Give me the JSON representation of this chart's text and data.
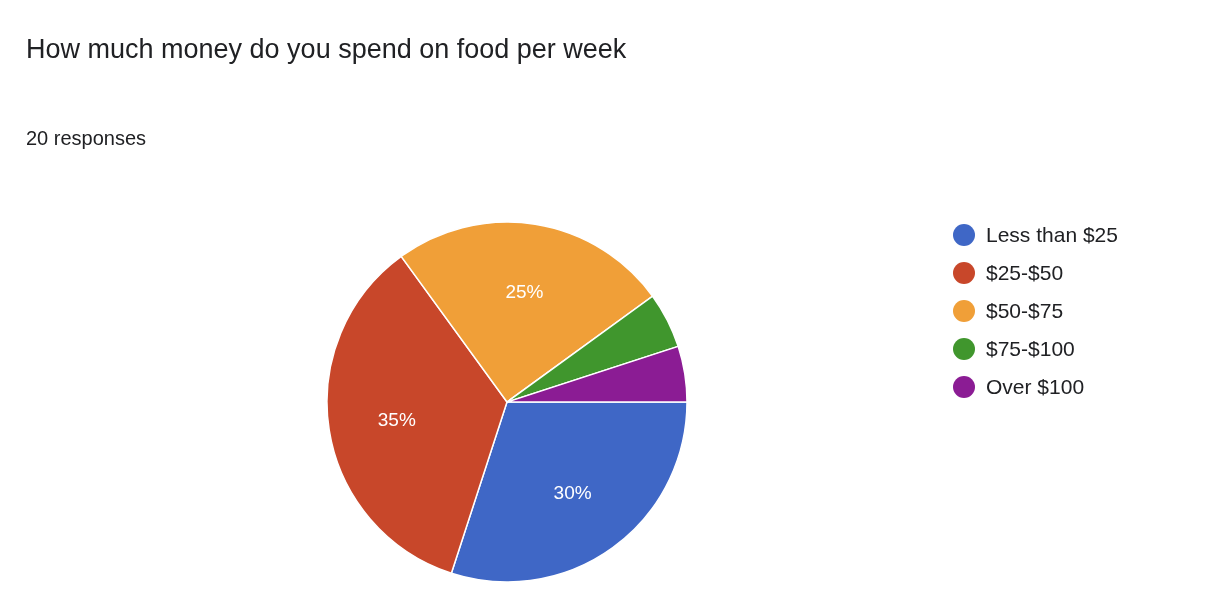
{
  "chart_data": {
    "type": "pie",
    "title": "How much money do you spend on food per week",
    "subtitle": "20 responses",
    "categories": [
      "Less than $25",
      "$25-$50",
      "$50-$75",
      "$75-$100",
      "Over $100"
    ],
    "values": [
      30,
      35,
      25,
      5,
      5
    ],
    "colors": [
      "#3f67c6",
      "#c8472a",
      "#f09f38",
      "#40962d",
      "#8b1c94"
    ],
    "value_labels": [
      "30%",
      "35%",
      "25%",
      null,
      null
    ],
    "legend": "right"
  }
}
